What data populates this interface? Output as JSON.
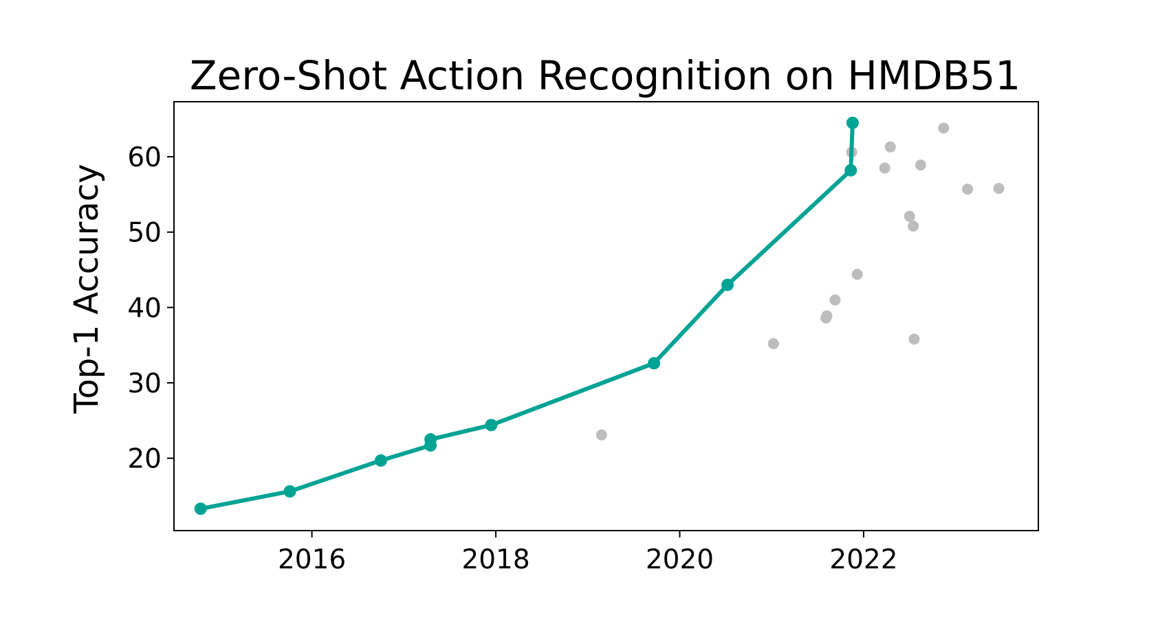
{
  "chart_data": {
    "type": "scatter",
    "title": "Zero-Shot Action Recognition on HMDB51",
    "xlabel": "",
    "ylabel": "Top-1 Accuracy",
    "xlim": [
      2014.5,
      2023.9
    ],
    "ylim": [
      10.4,
      67.3
    ],
    "x_ticks": [
      2016,
      2018,
      2020,
      2022
    ],
    "y_ticks": [
      20,
      30,
      40,
      50,
      60
    ],
    "grid": false,
    "legend": "none",
    "colors": {
      "frontier": "#00A394",
      "others": "#BDBDBD",
      "axes": "#000000"
    },
    "series": [
      {
        "style": "line-markers",
        "x": [
          2014.79,
          2015.76,
          2016.75,
          2017.29,
          2017.29,
          2017.95,
          2019.72,
          2020.52,
          2021.86,
          2021.88
        ],
        "y": [
          13.3,
          15.6,
          19.7,
          21.7,
          22.5,
          24.4,
          32.6,
          43.0,
          58.2,
          64.5
        ]
      },
      {
        "style": "markers",
        "x": [
          2019.15,
          2021.02,
          2021.59,
          2021.6,
          2021.69,
          2021.87,
          2021.93,
          2022.23,
          2022.29,
          2022.5,
          2022.54,
          2022.55,
          2022.62,
          2022.87,
          2023.13,
          2023.47
        ],
        "y": [
          23.1,
          35.2,
          38.6,
          38.9,
          41.0,
          60.6,
          44.4,
          58.5,
          61.3,
          52.1,
          50.8,
          35.8,
          58.9,
          63.8,
          55.7,
          55.8
        ]
      }
    ]
  }
}
